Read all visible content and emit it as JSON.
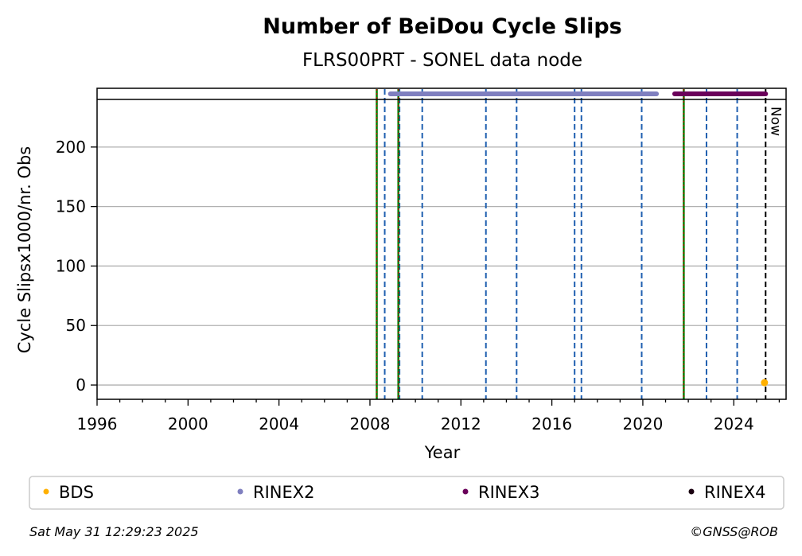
{
  "chart_data": {
    "type": "scatter",
    "title": "Number of BeiDou Cycle Slips",
    "subtitle": "FLRS00PRT - SONEL data node",
    "xlabel": "Year",
    "ylabel": "Cycle Slipsx1000/nr. Obs",
    "xlim": [
      1996,
      2026.3
    ],
    "ylim": [
      -12,
      240
    ],
    "x_ticks": [
      1996,
      2000,
      2004,
      2008,
      2012,
      2016,
      2020,
      2024
    ],
    "y_ticks": [
      0,
      50,
      100,
      150,
      200
    ],
    "grid": "horizontal",
    "legend_position": "bottom",
    "series": [
      {
        "name": "BDS",
        "color": "#ffb000",
        "points": [
          {
            "x": 2025.35,
            "y": 2
          }
        ]
      },
      {
        "name": "RINEX2",
        "color": "#7f7fbf",
        "range": [
          2008.9,
          2020.6
        ]
      },
      {
        "name": "RINEX3",
        "color": "#6a005a",
        "range": [
          2021.4,
          2025.4
        ]
      },
      {
        "name": "RINEX4",
        "color": "#1a0010",
        "range": []
      }
    ],
    "event_lines": {
      "equipment_change": {
        "color": "#1f5fb0",
        "x": [
          2008.65,
          2009.3,
          2010.3,
          2013.1,
          2014.45,
          2017.0,
          2017.3,
          2019.95,
          2022.8,
          2024.15
        ]
      },
      "station_change": {
        "color_outer": "#008000",
        "color_inner": "#d00000",
        "x": [
          2008.3,
          2009.25,
          2021.8
        ]
      },
      "now": {
        "x": 2025.4,
        "label": "Now",
        "color": "#000000"
      }
    }
  },
  "footer": {
    "timestamp": "Sat May 31 12:29:23 2025",
    "credit": "©GNSS@ROB"
  }
}
